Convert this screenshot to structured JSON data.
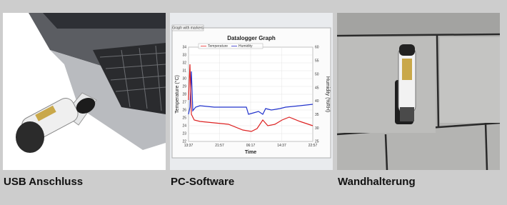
{
  "panels": [
    {
      "caption": "USB Anschluss"
    },
    {
      "caption": "PC-Software",
      "screen": {
        "button": "Graph with markers",
        "title": "Datalogger Graph",
        "legend": [
          "Temperature",
          "Humidity"
        ],
        "y_label": "Temperature (°C)",
        "y2_label": "Humidity (%RH)",
        "x_label": "Time",
        "yticks": [
          34,
          33,
          32,
          31,
          30,
          29,
          28,
          27,
          26,
          25,
          24,
          23,
          22
        ],
        "y2ticks": [
          60,
          55,
          50,
          45,
          40,
          35,
          30,
          25
        ],
        "xticks": [
          "13:37",
          "21:57",
          "06:17",
          "14:37",
          "22:57"
        ]
      }
    },
    {
      "caption": "Wandhalterung"
    }
  ]
}
